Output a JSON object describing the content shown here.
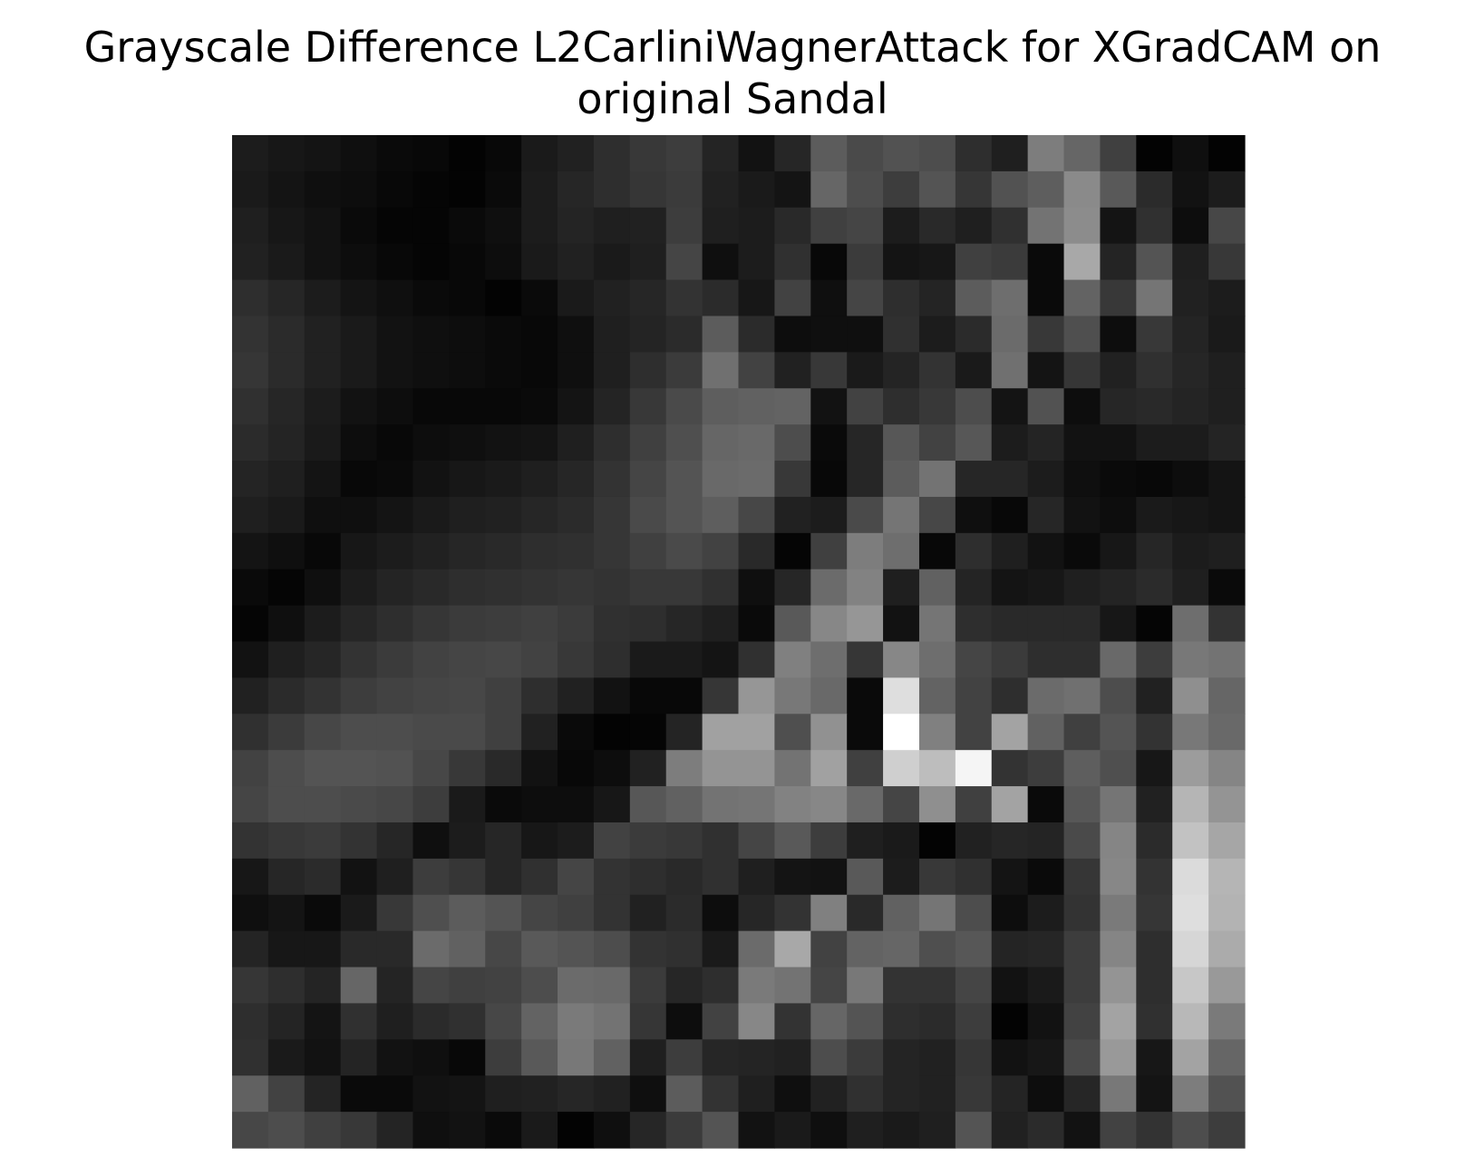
{
  "chart_data": {
    "type": "heatmap",
    "title_lines": [
      "Grayscale Difference L2CarliniWagnerAttack for XGradCAM on",
      "original Sandal"
    ],
    "xlabel": "",
    "ylabel": "",
    "axes_visible": false,
    "grid": false,
    "colormap": "gray",
    "value_range": [
      0,
      1
    ],
    "rows": 28,
    "cols": 28,
    "values": [
      [
        0.11,
        0.09,
        0.08,
        0.06,
        0.04,
        0.03,
        0.01,
        0.03,
        0.1,
        0.13,
        0.18,
        0.22,
        0.24,
        0.14,
        0.07,
        0.15,
        0.36,
        0.29,
        0.32,
        0.3,
        0.18,
        0.12,
        0.49,
        0.4,
        0.25,
        0.01,
        0.06,
        0.01
      ],
      [
        0.1,
        0.08,
        0.06,
        0.05,
        0.03,
        0.02,
        0.01,
        0.04,
        0.11,
        0.15,
        0.18,
        0.21,
        0.23,
        0.13,
        0.1,
        0.08,
        0.4,
        0.3,
        0.24,
        0.33,
        0.21,
        0.32,
        0.37,
        0.54,
        0.35,
        0.17,
        0.07,
        0.11
      ],
      [
        0.12,
        0.09,
        0.07,
        0.04,
        0.02,
        0.02,
        0.04,
        0.06,
        0.11,
        0.14,
        0.12,
        0.13,
        0.24,
        0.12,
        0.11,
        0.16,
        0.25,
        0.27,
        0.11,
        0.16,
        0.12,
        0.19,
        0.45,
        0.55,
        0.08,
        0.19,
        0.05,
        0.28
      ],
      [
        0.13,
        0.1,
        0.07,
        0.05,
        0.03,
        0.02,
        0.03,
        0.05,
        0.1,
        0.13,
        0.1,
        0.12,
        0.27,
        0.06,
        0.11,
        0.19,
        0.03,
        0.23,
        0.08,
        0.09,
        0.25,
        0.23,
        0.04,
        0.66,
        0.14,
        0.33,
        0.12,
        0.22
      ],
      [
        0.18,
        0.15,
        0.11,
        0.08,
        0.06,
        0.04,
        0.03,
        0.01,
        0.04,
        0.1,
        0.13,
        0.15,
        0.2,
        0.17,
        0.09,
        0.26,
        0.06,
        0.27,
        0.18,
        0.14,
        0.36,
        0.43,
        0.04,
        0.39,
        0.22,
        0.46,
        0.13,
        0.11
      ],
      [
        0.2,
        0.17,
        0.13,
        0.1,
        0.07,
        0.06,
        0.05,
        0.04,
        0.03,
        0.06,
        0.12,
        0.14,
        0.17,
        0.36,
        0.17,
        0.05,
        0.06,
        0.06,
        0.19,
        0.11,
        0.17,
        0.42,
        0.22,
        0.31,
        0.05,
        0.22,
        0.14,
        0.1
      ],
      [
        0.21,
        0.17,
        0.13,
        0.1,
        0.07,
        0.06,
        0.05,
        0.04,
        0.03,
        0.06,
        0.12,
        0.18,
        0.23,
        0.44,
        0.26,
        0.13,
        0.22,
        0.1,
        0.14,
        0.2,
        0.1,
        0.44,
        0.08,
        0.21,
        0.13,
        0.19,
        0.15,
        0.12
      ],
      [
        0.19,
        0.15,
        0.11,
        0.07,
        0.05,
        0.03,
        0.03,
        0.03,
        0.04,
        0.08,
        0.14,
        0.22,
        0.29,
        0.37,
        0.38,
        0.39,
        0.07,
        0.26,
        0.18,
        0.22,
        0.3,
        0.08,
        0.32,
        0.05,
        0.15,
        0.16,
        0.14,
        0.12
      ],
      [
        0.17,
        0.14,
        0.1,
        0.05,
        0.03,
        0.05,
        0.06,
        0.07,
        0.08,
        0.12,
        0.18,
        0.25,
        0.31,
        0.4,
        0.41,
        0.3,
        0.04,
        0.15,
        0.34,
        0.26,
        0.34,
        0.11,
        0.14,
        0.07,
        0.07,
        0.11,
        0.11,
        0.14
      ],
      [
        0.14,
        0.12,
        0.08,
        0.03,
        0.04,
        0.07,
        0.09,
        0.1,
        0.12,
        0.15,
        0.2,
        0.27,
        0.33,
        0.41,
        0.42,
        0.22,
        0.03,
        0.15,
        0.36,
        0.45,
        0.15,
        0.15,
        0.11,
        0.06,
        0.04,
        0.03,
        0.05,
        0.08
      ],
      [
        0.12,
        0.1,
        0.06,
        0.06,
        0.08,
        0.1,
        0.12,
        0.13,
        0.15,
        0.17,
        0.21,
        0.29,
        0.33,
        0.37,
        0.28,
        0.13,
        0.11,
        0.29,
        0.46,
        0.28,
        0.06,
        0.03,
        0.15,
        0.07,
        0.05,
        0.1,
        0.09,
        0.08
      ],
      [
        0.08,
        0.06,
        0.03,
        0.09,
        0.11,
        0.13,
        0.15,
        0.16,
        0.18,
        0.19,
        0.21,
        0.25,
        0.29,
        0.26,
        0.16,
        0.02,
        0.25,
        0.49,
        0.43,
        0.03,
        0.18,
        0.12,
        0.07,
        0.04,
        0.09,
        0.15,
        0.11,
        0.12
      ],
      [
        0.04,
        0.02,
        0.06,
        0.11,
        0.14,
        0.16,
        0.18,
        0.19,
        0.2,
        0.21,
        0.2,
        0.22,
        0.22,
        0.19,
        0.06,
        0.15,
        0.42,
        0.51,
        0.12,
        0.38,
        0.14,
        0.08,
        0.09,
        0.12,
        0.14,
        0.17,
        0.12,
        0.04
      ],
      [
        0.02,
        0.06,
        0.11,
        0.15,
        0.18,
        0.21,
        0.23,
        0.24,
        0.25,
        0.23,
        0.19,
        0.18,
        0.15,
        0.12,
        0.04,
        0.35,
        0.53,
        0.59,
        0.07,
        0.46,
        0.18,
        0.16,
        0.16,
        0.16,
        0.09,
        0.02,
        0.43,
        0.2
      ],
      [
        0.07,
        0.12,
        0.15,
        0.2,
        0.23,
        0.26,
        0.27,
        0.28,
        0.26,
        0.22,
        0.18,
        0.1,
        0.1,
        0.08,
        0.19,
        0.5,
        0.43,
        0.21,
        0.53,
        0.43,
        0.27,
        0.23,
        0.18,
        0.18,
        0.41,
        0.24,
        0.47,
        0.45
      ],
      [
        0.13,
        0.17,
        0.2,
        0.24,
        0.26,
        0.27,
        0.28,
        0.25,
        0.18,
        0.13,
        0.07,
        0.03,
        0.03,
        0.21,
        0.59,
        0.47,
        0.41,
        0.04,
        0.87,
        0.39,
        0.26,
        0.18,
        0.42,
        0.44,
        0.3,
        0.13,
        0.56,
        0.4
      ],
      [
        0.19,
        0.23,
        0.28,
        0.3,
        0.3,
        0.29,
        0.29,
        0.25,
        0.13,
        0.04,
        0.01,
        0.02,
        0.14,
        0.63,
        0.63,
        0.31,
        0.57,
        0.04,
        1.0,
        0.5,
        0.26,
        0.64,
        0.38,
        0.25,
        0.33,
        0.2,
        0.47,
        0.41
      ],
      [
        0.26,
        0.3,
        0.33,
        0.33,
        0.32,
        0.28,
        0.22,
        0.16,
        0.07,
        0.03,
        0.05,
        0.13,
        0.49,
        0.58,
        0.58,
        0.45,
        0.63,
        0.25,
        0.81,
        0.74,
        0.96,
        0.2,
        0.24,
        0.37,
        0.31,
        0.09,
        0.61,
        0.52
      ],
      [
        0.27,
        0.3,
        0.3,
        0.29,
        0.28,
        0.24,
        0.1,
        0.04,
        0.05,
        0.05,
        0.09,
        0.34,
        0.38,
        0.45,
        0.46,
        0.51,
        0.53,
        0.41,
        0.27,
        0.56,
        0.25,
        0.64,
        0.04,
        0.34,
        0.46,
        0.13,
        0.71,
        0.58
      ],
      [
        0.2,
        0.22,
        0.23,
        0.2,
        0.15,
        0.06,
        0.11,
        0.15,
        0.09,
        0.11,
        0.26,
        0.23,
        0.22,
        0.19,
        0.27,
        0.35,
        0.24,
        0.12,
        0.1,
        0.01,
        0.13,
        0.15,
        0.14,
        0.29,
        0.52,
        0.17,
        0.76,
        0.65
      ],
      [
        0.09,
        0.15,
        0.17,
        0.07,
        0.12,
        0.24,
        0.21,
        0.15,
        0.19,
        0.27,
        0.2,
        0.18,
        0.16,
        0.19,
        0.12,
        0.08,
        0.07,
        0.35,
        0.11,
        0.22,
        0.19,
        0.08,
        0.04,
        0.21,
        0.53,
        0.2,
        0.86,
        0.71
      ],
      [
        0.06,
        0.08,
        0.04,
        0.1,
        0.22,
        0.31,
        0.36,
        0.33,
        0.27,
        0.25,
        0.2,
        0.13,
        0.17,
        0.05,
        0.15,
        0.2,
        0.5,
        0.16,
        0.38,
        0.46,
        0.3,
        0.05,
        0.11,
        0.2,
        0.48,
        0.21,
        0.87,
        0.7
      ],
      [
        0.14,
        0.09,
        0.09,
        0.16,
        0.16,
        0.42,
        0.38,
        0.28,
        0.35,
        0.33,
        0.3,
        0.2,
        0.19,
        0.1,
        0.42,
        0.66,
        0.26,
        0.39,
        0.4,
        0.31,
        0.34,
        0.14,
        0.15,
        0.24,
        0.52,
        0.18,
        0.84,
        0.67
      ],
      [
        0.21,
        0.18,
        0.14,
        0.4,
        0.14,
        0.27,
        0.25,
        0.26,
        0.3,
        0.42,
        0.41,
        0.23,
        0.15,
        0.18,
        0.48,
        0.45,
        0.27,
        0.47,
        0.2,
        0.2,
        0.27,
        0.07,
        0.1,
        0.24,
        0.58,
        0.18,
        0.78,
        0.6
      ],
      [
        0.18,
        0.14,
        0.08,
        0.19,
        0.12,
        0.17,
        0.19,
        0.28,
        0.39,
        0.48,
        0.45,
        0.21,
        0.05,
        0.26,
        0.53,
        0.2,
        0.4,
        0.33,
        0.18,
        0.17,
        0.24,
        0.01,
        0.07,
        0.26,
        0.64,
        0.19,
        0.72,
        0.48
      ],
      [
        0.19,
        0.1,
        0.07,
        0.14,
        0.07,
        0.06,
        0.03,
        0.24,
        0.35,
        0.47,
        0.38,
        0.12,
        0.24,
        0.15,
        0.14,
        0.13,
        0.3,
        0.23,
        0.14,
        0.13,
        0.21,
        0.07,
        0.09,
        0.29,
        0.6,
        0.09,
        0.64,
        0.4
      ],
      [
        0.38,
        0.26,
        0.14,
        0.04,
        0.04,
        0.07,
        0.08,
        0.12,
        0.13,
        0.15,
        0.13,
        0.06,
        0.36,
        0.2,
        0.12,
        0.06,
        0.13,
        0.19,
        0.14,
        0.13,
        0.22,
        0.14,
        0.05,
        0.15,
        0.47,
        0.08,
        0.49,
        0.32
      ],
      [
        0.28,
        0.3,
        0.25,
        0.22,
        0.14,
        0.06,
        0.07,
        0.04,
        0.1,
        0.01,
        0.06,
        0.15,
        0.23,
        0.33,
        0.07,
        0.1,
        0.06,
        0.12,
        0.1,
        0.12,
        0.33,
        0.13,
        0.17,
        0.07,
        0.26,
        0.2,
        0.3,
        0.24
      ]
    ]
  }
}
